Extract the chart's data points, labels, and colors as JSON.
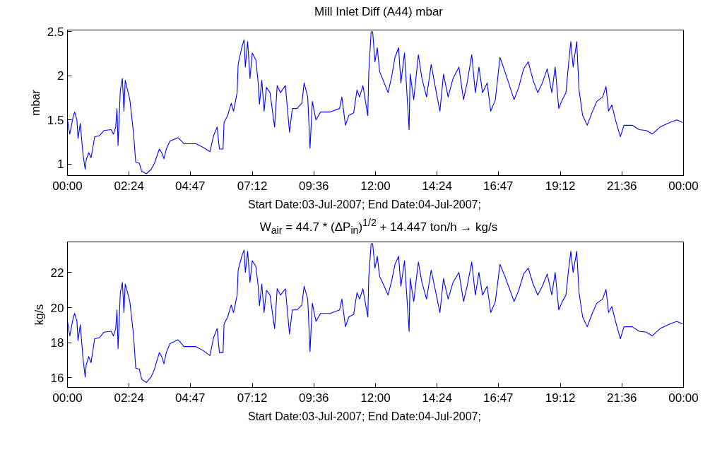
{
  "chart_data": [
    {
      "type": "line",
      "title": "Mill Inlet Diff (A44) mbar",
      "xlabel": "Start Date:03-Jul-2007;        End Date:04-Jul-2007;",
      "ylabel": "mbar",
      "x": [
        0,
        0.09,
        0.23,
        0.28,
        0.37,
        0.41,
        0.5,
        0.55,
        0.61,
        0.69,
        0.73,
        0.83,
        0.92,
        1.06,
        1.24,
        1.42,
        1.7,
        1.79,
        1.88,
        1.93,
        1.97,
        2.06,
        2.14,
        2.2,
        2.25,
        2.34,
        2.43,
        2.57,
        2.66,
        2.8,
        2.89,
        3.07,
        3.26,
        3.39,
        3.58,
        3.67,
        3.76,
        3.85,
        3.99,
        4.31,
        4.54,
        5.0,
        5.28,
        5.55,
        5.69,
        5.83,
        5.92,
        6.06,
        6.1,
        6.24,
        6.38,
        6.47,
        6.61,
        6.65,
        6.79,
        6.88,
        6.93,
        7.02,
        7.11,
        7.2,
        7.34,
        7.43,
        7.48,
        7.57,
        7.66,
        7.75,
        7.89,
        8.07,
        8.17,
        8.3,
        8.49,
        8.65,
        8.76,
        8.94,
        9.13,
        9.22,
        9.36,
        9.45,
        9.54,
        9.68,
        9.86,
        10.23,
        10.6,
        10.69,
        10.83,
        10.96,
        11.15,
        11.28,
        11.38,
        11.51,
        11.7,
        11.74,
        11.83,
        11.89,
        11.98,
        12.07,
        12.16,
        12.3,
        12.49,
        12.63,
        12.76,
        12.9,
        12.99,
        13.13,
        13.31,
        13.35,
        13.49,
        13.67,
        13.81,
        13.99,
        14.17,
        14.37,
        14.51,
        14.65,
        14.83,
        15.02,
        15.25,
        15.43,
        15.57,
        15.75,
        15.89,
        16.03,
        16.17,
        16.35,
        16.49,
        16.67,
        16.85,
        17.04,
        17.22,
        17.4,
        17.58,
        17.77,
        17.95,
        18.14,
        18.32,
        18.5,
        18.69,
        18.87,
        19.0,
        19.14,
        19.28,
        19.42,
        19.52,
        19.61,
        19.7,
        19.84,
        19.93,
        20.07,
        20.25,
        20.43,
        20.62,
        20.85,
        20.98,
        21.08,
        21.21,
        21.35,
        21.54,
        21.68,
        22.0,
        22.27,
        22.55,
        22.78,
        23.09,
        23.46,
        23.74,
        23.97
      ],
      "series": [
        {
          "color": "#0000ff",
          "values": [
            1.5,
            1.34,
            1.55,
            1.59,
            1.5,
            1.29,
            1.46,
            1.29,
            1.1,
            0.94,
            1.05,
            1.13,
            1.07,
            1.31,
            1.32,
            1.38,
            1.39,
            1.34,
            1.42,
            1.63,
            1.21,
            1.84,
            1.97,
            1.6,
            1.95,
            1.84,
            1.73,
            1.36,
            1.02,
            1.01,
            0.92,
            0.89,
            0.94,
            1.01,
            1.17,
            1.13,
            1.06,
            1.17,
            1.26,
            1.3,
            1.23,
            1.23,
            1.19,
            1.14,
            1.32,
            1.42,
            1.17,
            1.17,
            1.47,
            1.55,
            1.69,
            1.6,
            1.81,
            2.13,
            2.32,
            2.41,
            2.1,
            2.39,
            1.97,
            2.26,
            2.18,
            1.92,
            1.68,
            1.95,
            1.6,
            1.87,
            1.81,
            1.42,
            1.89,
            1.81,
            1.89,
            1.36,
            1.63,
            1.63,
            1.69,
            1.92,
            1.76,
            1.18,
            1.71,
            1.5,
            1.59,
            1.59,
            1.63,
            1.76,
            1.44,
            1.55,
            1.58,
            1.84,
            1.76,
            1.89,
            1.55,
            2.05,
            2.5,
            2.5,
            2.16,
            2.32,
            2.05,
            1.95,
            1.81,
            1.99,
            2.21,
            2.32,
            1.92,
            2.26,
            1.39,
            2.02,
            1.73,
            2.24,
            1.97,
            1.76,
            2.13,
            1.81,
            1.6,
            2.02,
            1.76,
            1.97,
            2.1,
            1.73,
            1.92,
            2.24,
            1.81,
            2.1,
            1.81,
            1.92,
            1.6,
            1.73,
            2.21,
            2.05,
            1.89,
            1.73,
            1.87,
            2.08,
            2.16,
            1.95,
            1.81,
            1.92,
            2.08,
            1.81,
            2.1,
            1.63,
            1.73,
            1.81,
            2.13,
            2.39,
            2.1,
            2.39,
            1.84,
            1.55,
            1.44,
            1.58,
            1.71,
            1.76,
            1.88,
            1.6,
            1.67,
            1.5,
            1.31,
            1.44,
            1.44,
            1.39,
            1.38,
            1.34,
            1.42,
            1.47,
            1.5,
            1.47
          ]
        }
      ],
      "xlim": [
        0,
        24
      ],
      "xticks": [
        {
          "value": 0,
          "label": "00:00"
        },
        {
          "value": 2.4,
          "label": "02:24"
        },
        {
          "value": 4.7833,
          "label": "04:47"
        },
        {
          "value": 7.2,
          "label": "07:12"
        },
        {
          "value": 9.6,
          "label": "09:36"
        },
        {
          "value": 12,
          "label": "12:00"
        },
        {
          "value": 14.4,
          "label": "14:24"
        },
        {
          "value": 16.7833,
          "label": "16:47"
        },
        {
          "value": 19.2,
          "label": "19:12"
        },
        {
          "value": 21.6,
          "label": "21:36"
        },
        {
          "value": 24,
          "label": "00:00"
        }
      ],
      "ylim": [
        0.87,
        2.52
      ],
      "yticks": [
        1,
        1.5,
        2,
        2.5
      ],
      "grid": false
    },
    {
      "type": "line",
      "title": "W$_{air}$ = 44.7 * (ΔP$_{in}$)$^{1/2}$ + 14.447 ton/h → kg/s",
      "xlabel": "Start Date:03-Jul-2007;        End Date:04-Jul-2007;",
      "ylabel": "kg/s",
      "x": [
        0,
        0.09,
        0.23,
        0.28,
        0.37,
        0.41,
        0.5,
        0.55,
        0.61,
        0.69,
        0.73,
        0.83,
        0.92,
        1.06,
        1.24,
        1.42,
        1.7,
        1.79,
        1.88,
        1.93,
        1.97,
        2.06,
        2.14,
        2.2,
        2.25,
        2.34,
        2.43,
        2.57,
        2.66,
        2.8,
        2.89,
        3.07,
        3.26,
        3.39,
        3.58,
        3.67,
        3.76,
        3.85,
        3.99,
        4.31,
        4.54,
        5.0,
        5.28,
        5.55,
        5.69,
        5.83,
        5.92,
        6.06,
        6.1,
        6.24,
        6.38,
        6.47,
        6.61,
        6.65,
        6.79,
        6.88,
        6.93,
        7.02,
        7.11,
        7.2,
        7.34,
        7.43,
        7.48,
        7.57,
        7.66,
        7.75,
        7.89,
        8.07,
        8.17,
        8.3,
        8.49,
        8.65,
        8.76,
        8.94,
        9.13,
        9.22,
        9.36,
        9.45,
        9.54,
        9.68,
        9.86,
        10.23,
        10.6,
        10.69,
        10.83,
        10.96,
        11.15,
        11.28,
        11.38,
        11.51,
        11.7,
        11.74,
        11.83,
        11.89,
        11.98,
        12.07,
        12.16,
        12.3,
        12.49,
        12.63,
        12.76,
        12.9,
        12.99,
        13.13,
        13.31,
        13.35,
        13.49,
        13.67,
        13.81,
        13.99,
        14.17,
        14.37,
        14.51,
        14.65,
        14.83,
        15.02,
        15.25,
        15.43,
        15.57,
        15.75,
        15.89,
        16.03,
        16.17,
        16.35,
        16.49,
        16.67,
        16.85,
        17.04,
        17.22,
        17.4,
        17.58,
        17.77,
        17.95,
        18.14,
        18.32,
        18.5,
        18.69,
        18.87,
        19.0,
        19.14,
        19.28,
        19.42,
        19.52,
        19.61,
        19.7,
        19.84,
        19.93,
        20.07,
        20.25,
        20.43,
        20.62,
        20.85,
        20.98,
        21.08,
        21.21,
        21.35,
        21.54,
        21.68,
        22.0,
        22.27,
        22.55,
        22.78,
        23.09,
        23.46,
        23.74,
        23.97
      ],
      "series": [
        {
          "color": "#0000ff",
          "values": [
            19.22,
            18.39,
            19.47,
            19.67,
            19.22,
            18.12,
            19.02,
            18.12,
            17.04,
            16.05,
            16.74,
            17.21,
            16.86,
            18.23,
            18.28,
            18.6,
            18.65,
            18.39,
            18.81,
            19.87,
            17.67,
            20.86,
            21.44,
            19.72,
            21.35,
            20.86,
            20.35,
            18.49,
            16.55,
            16.49,
            15.92,
            15.73,
            16.05,
            16.49,
            17.44,
            17.21,
            16.8,
            17.44,
            17.95,
            18.17,
            17.78,
            17.78,
            17.56,
            17.27,
            18.28,
            18.81,
            17.44,
            17.44,
            19.07,
            19.47,
            20.15,
            19.72,
            20.72,
            22.14,
            22.93,
            23.29,
            22.01,
            23.21,
            21.44,
            22.68,
            22.35,
            21.22,
            20.11,
            21.35,
            19.72,
            20.99,
            20.72,
            18.81,
            21.08,
            20.72,
            21.08,
            18.49,
            19.87,
            19.87,
            20.15,
            21.22,
            20.49,
            17.5,
            20.25,
            19.22,
            19.67,
            19.67,
            19.87,
            20.49,
            18.91,
            19.47,
            19.62,
            20.86,
            20.49,
            21.08,
            19.47,
            21.79,
            23.65,
            23.65,
            22.26,
            22.93,
            21.79,
            21.35,
            20.72,
            21.53,
            22.47,
            22.93,
            21.22,
            22.68,
            18.65,
            21.66,
            20.35,
            22.6,
            21.44,
            20.49,
            22.14,
            20.72,
            19.72,
            21.66,
            20.49,
            21.44,
            22.01,
            20.35,
            21.22,
            22.6,
            20.72,
            22.01,
            20.72,
            21.22,
            19.72,
            20.35,
            22.47,
            21.79,
            21.08,
            20.35,
            20.99,
            21.92,
            22.26,
            21.35,
            20.72,
            21.22,
            21.92,
            20.72,
            22.01,
            19.87,
            20.35,
            20.72,
            22.14,
            23.21,
            22.01,
            23.21,
            20.86,
            19.47,
            18.91,
            19.62,
            20.25,
            20.49,
            21.04,
            19.72,
            20.06,
            19.22,
            18.23,
            18.91,
            18.91,
            18.65,
            18.6,
            18.39,
            18.81,
            19.07,
            19.22,
            19.07
          ]
        }
      ],
      "xlim": [
        0,
        24
      ],
      "xticks": [
        {
          "value": 0,
          "label": "00:00"
        },
        {
          "value": 2.4,
          "label": "02:24"
        },
        {
          "value": 4.7833,
          "label": "04:47"
        },
        {
          "value": 7.2,
          "label": "07:12"
        },
        {
          "value": 9.6,
          "label": "09:36"
        },
        {
          "value": 12,
          "label": "12:00"
        },
        {
          "value": 14.4,
          "label": "14:24"
        },
        {
          "value": 16.7833,
          "label": "16:47"
        },
        {
          "value": 19.2,
          "label": "19:12"
        },
        {
          "value": 21.6,
          "label": "21:36"
        },
        {
          "value": 24,
          "label": "00:00"
        }
      ],
      "ylim": [
        15.45,
        23.75
      ],
      "yticks": [
        16,
        18,
        20,
        22
      ],
      "grid": false
    }
  ]
}
